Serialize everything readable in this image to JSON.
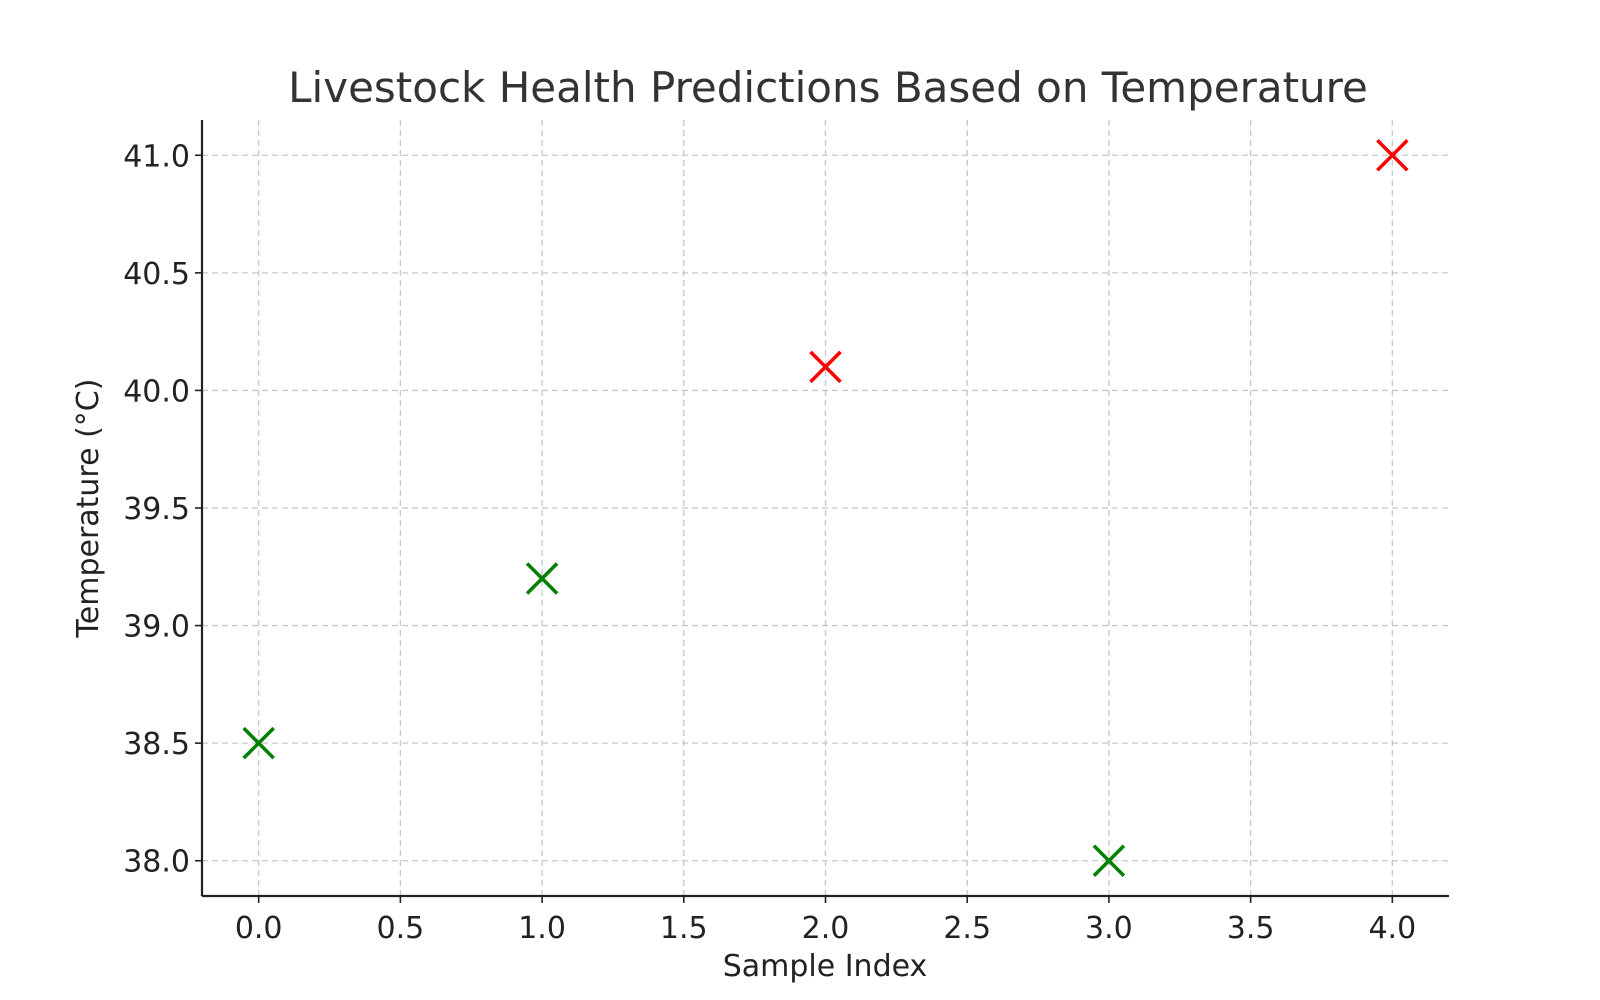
{
  "chart_data": {
    "type": "scatter",
    "title": "Livestock Health Predictions Based on Temperature",
    "xlabel": "Sample Index",
    "ylabel": "Temperature (°C)",
    "xlim": [
      -0.2,
      4.2
    ],
    "ylim": [
      37.85,
      41.15
    ],
    "xticks": [
      0.0,
      0.5,
      1.0,
      1.5,
      2.0,
      2.5,
      3.0,
      3.5,
      4.0
    ],
    "xtick_labels": [
      "0.0",
      "0.5",
      "1.0",
      "1.5",
      "2.0",
      "2.5",
      "3.0",
      "3.5",
      "4.0"
    ],
    "yticks": [
      38.0,
      38.5,
      39.0,
      39.5,
      40.0,
      40.5,
      41.0
    ],
    "ytick_labels": [
      "38.0",
      "38.5",
      "39.0",
      "39.5",
      "40.0",
      "40.5",
      "41.0"
    ],
    "grid": true,
    "marker": "x",
    "points": [
      {
        "x": 0,
        "y": 38.5,
        "color": "#008000"
      },
      {
        "x": 1,
        "y": 39.2,
        "color": "#008000"
      },
      {
        "x": 2,
        "y": 40.1,
        "color": "#ff0000"
      },
      {
        "x": 3,
        "y": 38.0,
        "color": "#008000"
      },
      {
        "x": 4,
        "y": 41.0,
        "color": "#ff0000"
      }
    ]
  }
}
